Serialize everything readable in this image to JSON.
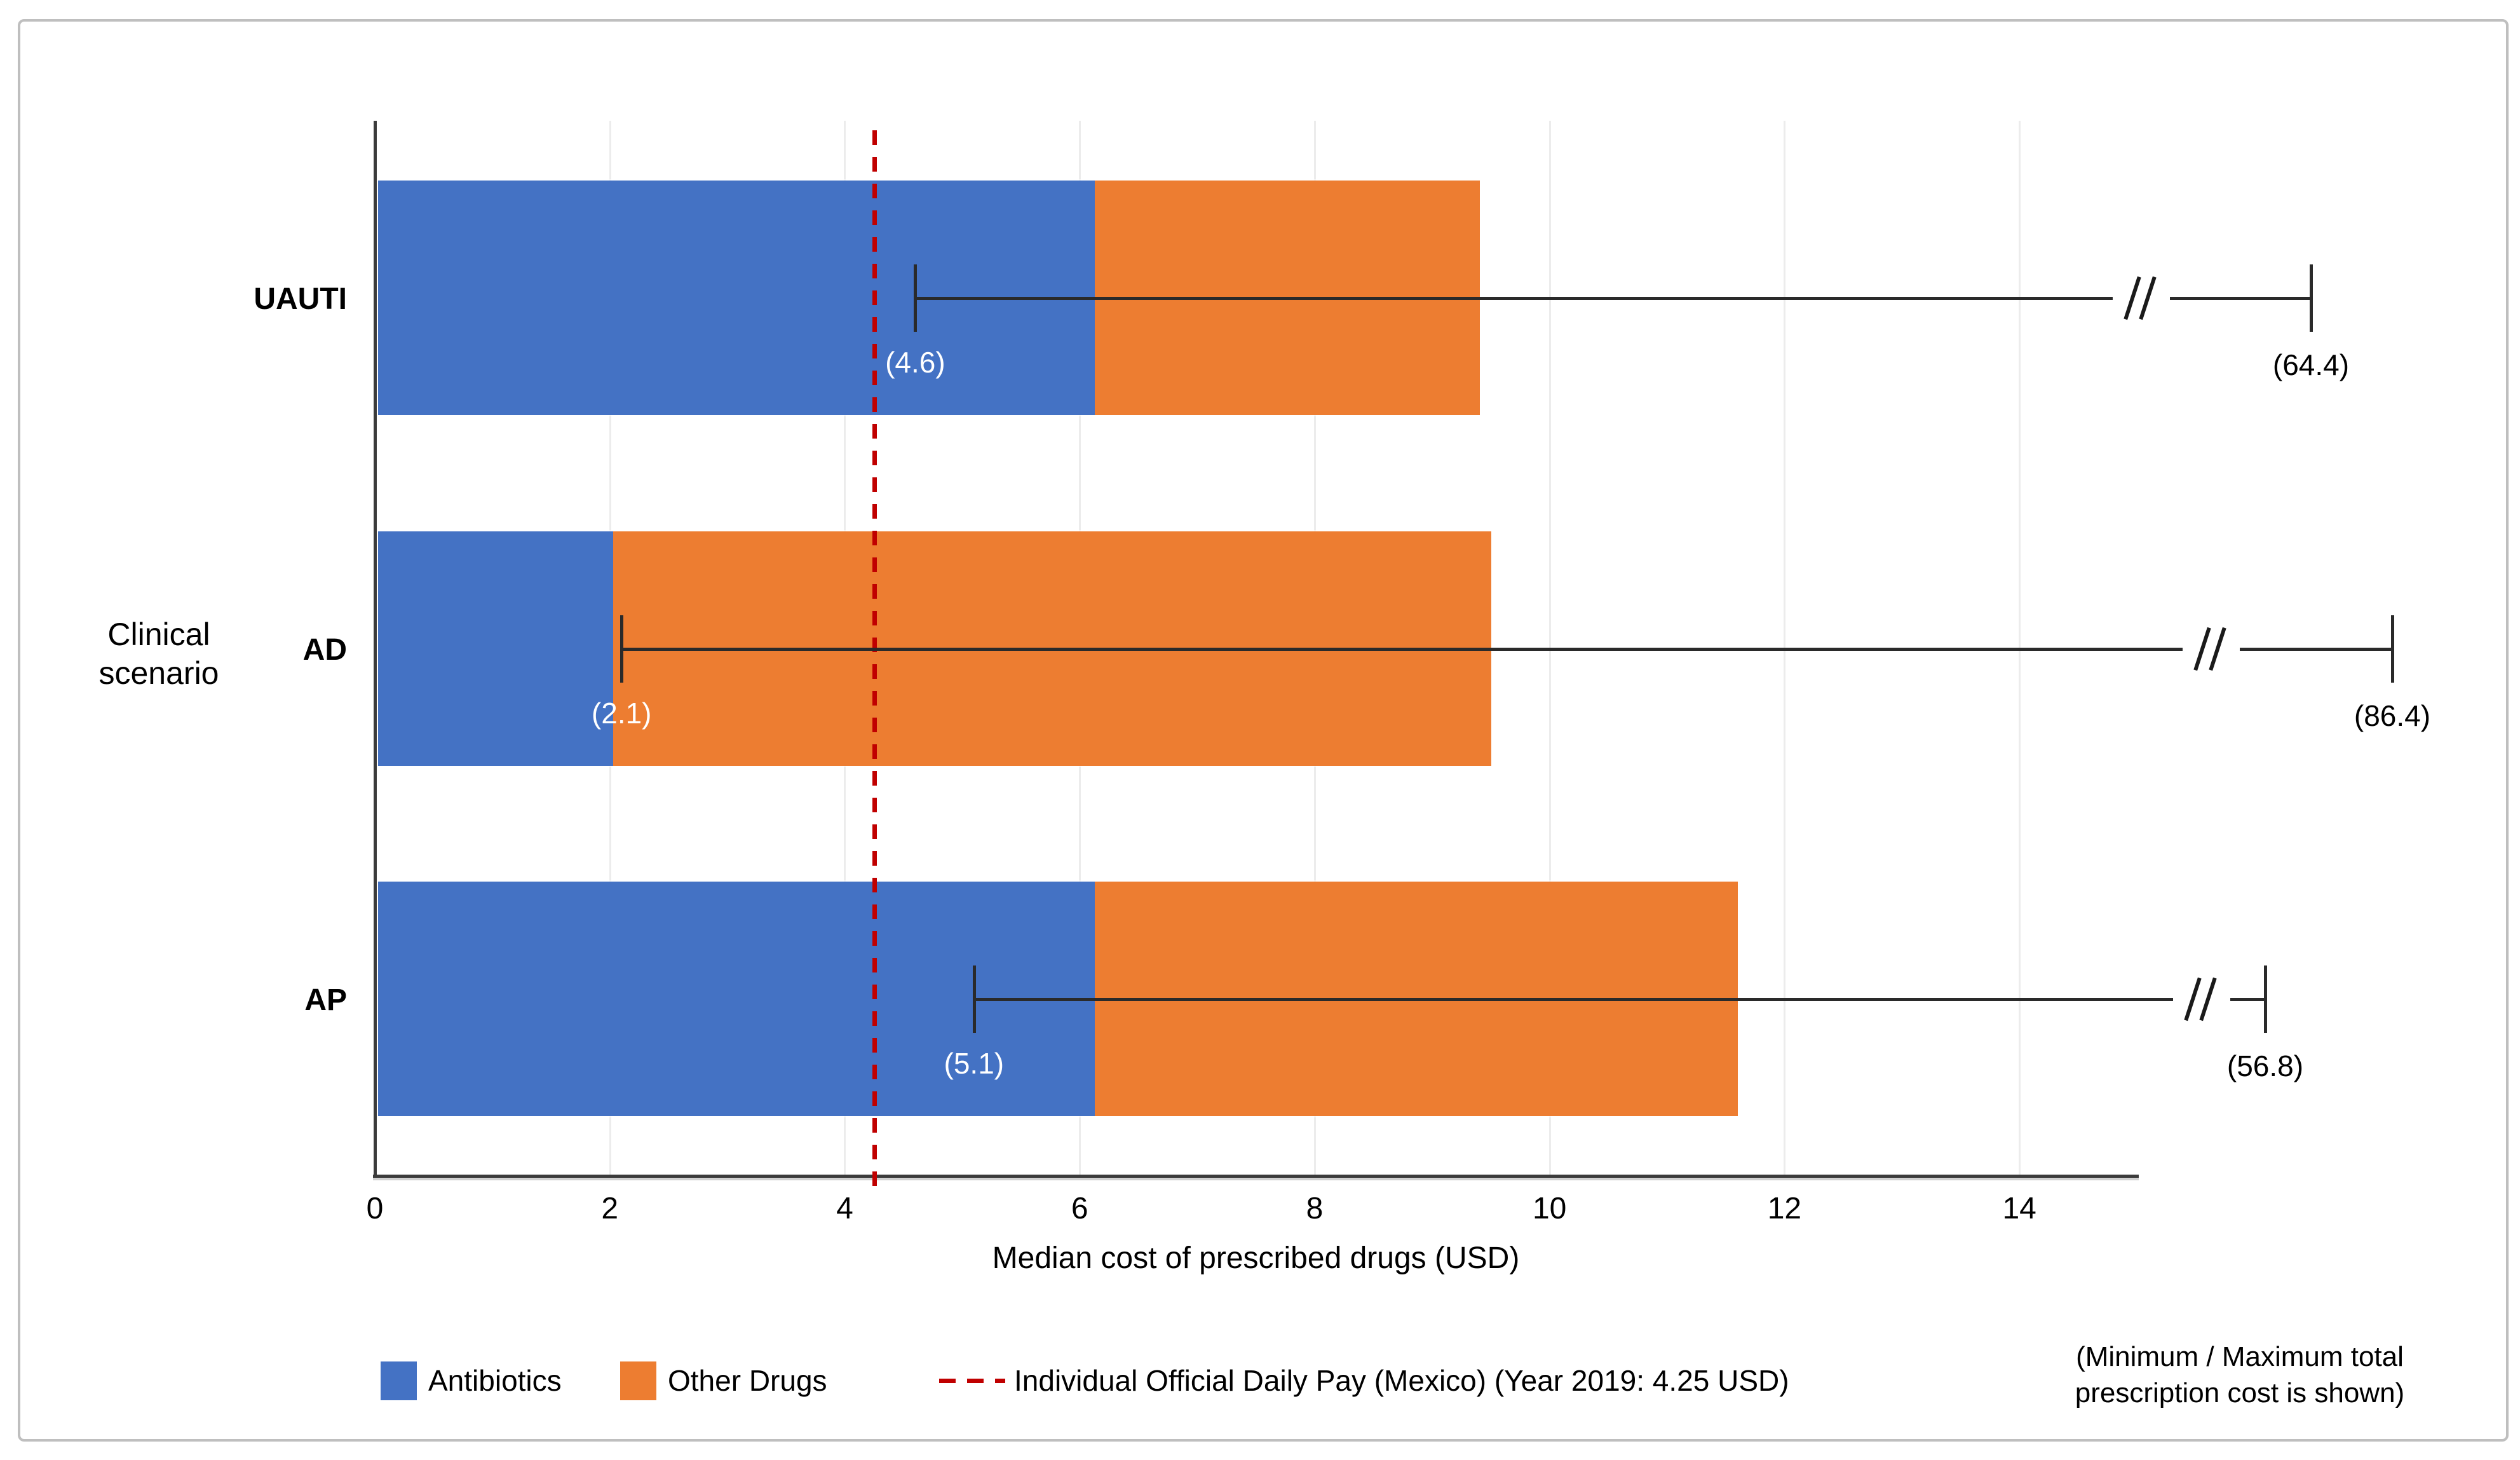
{
  "chart_data": {
    "type": "bar",
    "orientation": "horizontal-stacked",
    "categories": [
      "UAUTI",
      "AD",
      "AP"
    ],
    "series": [
      {
        "name": "Antibiotics",
        "color": "#4472C4",
        "values": [
          6.1,
          2.0,
          6.1
        ]
      },
      {
        "name": "Other Drugs",
        "color": "#ED7D31",
        "values": [
          3.3,
          7.5,
          5.5
        ]
      }
    ],
    "stacked_totals": [
      9.4,
      9.5,
      11.6
    ],
    "whisker_min": [
      4.6,
      2.1,
      5.1
    ],
    "whisker_max": [
      64.4,
      86.4,
      56.8
    ],
    "axis_break": true,
    "xlabel": "Median cost of prescribed drugs (USD)",
    "ylabel": "Clinical scenario",
    "xlim": [
      0,
      15
    ],
    "x_ticks": [
      0,
      2,
      4,
      6,
      8,
      10,
      12,
      14
    ],
    "grid": "vertical-light",
    "reference_line": {
      "value": 4.25,
      "style": "dashed",
      "color": "#C00000",
      "label": "Individual Official Daily Pay (Mexico) (Year 2019: 4.25 USD)"
    },
    "legend": [
      {
        "swatch": "square",
        "color": "#4472C4",
        "label": "Antibiotics"
      },
      {
        "swatch": "square",
        "color": "#ED7D31",
        "label": "Other Drugs"
      },
      {
        "swatch": "dashed-line",
        "color": "#C00000",
        "label": "Individual Official Daily Pay (Mexico) (Year 2019: 4.25 USD)"
      }
    ],
    "note": "(Minimum / Maximum total prescription cost is shown)"
  },
  "colors": {
    "antibiotics": "#4472C4",
    "other_drugs": "#ED7D31",
    "reference": "#C00000",
    "axis": "#3b3b3b",
    "grid": "#ECECEC",
    "frame": "#BFBFBF"
  }
}
